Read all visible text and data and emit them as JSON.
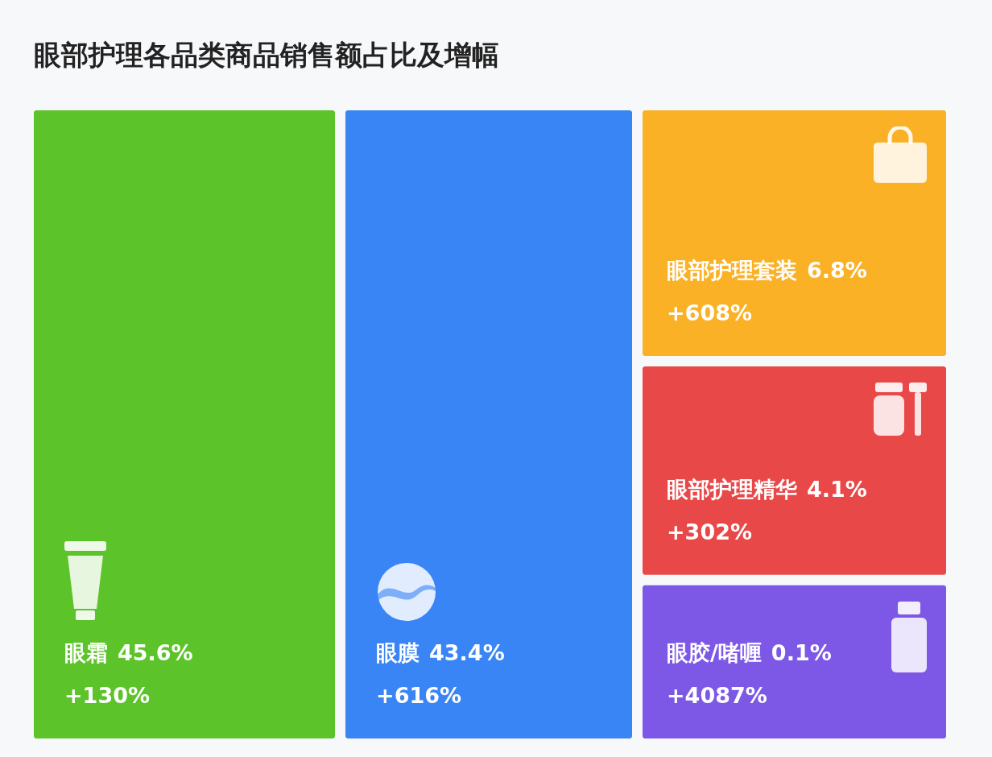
{
  "chart_data": {
    "type": "other",
    "title": "眼部护理各品类商品销售额占比及增幅",
    "categories": [
      "眼霜",
      "眼膜",
      "眼部护理套装",
      "眼部护理精华",
      "眼胶/啫喱"
    ],
    "values": [
      45.6,
      43.4,
      6.8,
      4.1,
      0.1
    ],
    "value_labels": [
      "45.6%",
      "43.4%",
      "6.8%",
      "4.1%",
      "0.1%"
    ],
    "colors": [
      "#5cc42a",
      "#3a85f5",
      "#fbb126",
      "#e84848",
      "#7d58e6"
    ],
    "annotations": [
      {
        "text": "+130%",
        "x": "眼霜"
      },
      {
        "text": "+616%",
        "x": "眼膜"
      },
      {
        "text": "+608%",
        "x": "眼部护理套装"
      },
      {
        "text": "+302%",
        "x": "眼部护理精华"
      },
      {
        "text": "+4087%",
        "x": "眼胶/啫喱"
      }
    ]
  }
}
